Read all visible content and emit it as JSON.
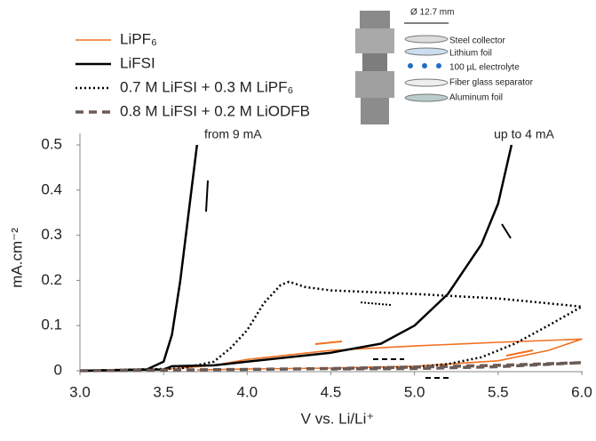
{
  "chart_data": {
    "type": "line",
    "xlabel": "V vs. Li/Li⁺",
    "ylabel": "mA.cm⁻²",
    "xlim": [
      3,
      6
    ],
    "ylim": [
      0,
      0.5
    ],
    "xticks": [
      {
        "value": 3,
        "label": "3.0"
      },
      {
        "value": 3.5,
        "label": "3.5"
      },
      {
        "value": 4,
        "label": "4.0"
      },
      {
        "value": 4.5,
        "label": "4.5"
      },
      {
        "value": 5,
        "label": "5.0"
      },
      {
        "value": 5.5,
        "label": "5.5"
      },
      {
        "value": 6,
        "label": "6.0"
      }
    ],
    "yticks": [
      0,
      0.1,
      0.2,
      0.3,
      0.4,
      0.5
    ],
    "grid": false,
    "series": [
      {
        "name": "LiPF₆",
        "color": "#f07020",
        "linestyle": "solid",
        "x": [
          3.0,
          3.5,
          3.8,
          4.0,
          4.5,
          5.0,
          5.5,
          6.0,
          5.8,
          5.5,
          5.0,
          4.5,
          4.0,
          3.7
        ],
        "values": [
          0,
          0.003,
          0.012,
          0.025,
          0.045,
          0.055,
          0.063,
          0.07,
          0.045,
          0.022,
          0.01,
          0.006,
          0.004,
          0.002
        ]
      },
      {
        "name": "LiFSI",
        "color": "#000000",
        "linestyle": "solid",
        "x": [
          3.0,
          3.5,
          3.55,
          3.8,
          4.0,
          4.5,
          4.8,
          5.0,
          5.2,
          5.4,
          5.5,
          5.58,
          null,
          3.7,
          3.65,
          3.6,
          3.55,
          3.5,
          3.4,
          3.0
        ],
        "values": [
          0,
          0.003,
          0.01,
          0.012,
          0.02,
          0.04,
          0.06,
          0.1,
          0.17,
          0.28,
          0.37,
          0.5,
          null,
          0.5,
          0.35,
          0.2,
          0.08,
          0.02,
          0.003,
          0
        ]
      },
      {
        "name": "0.7 M LiFSI + 0.3 M LiPF₆",
        "color": "#000000",
        "linestyle": "dotted",
        "x": [
          3.0,
          3.6,
          3.8,
          3.9,
          4.0,
          4.1,
          4.2,
          4.25,
          4.35,
          4.5,
          5.0,
          5.5,
          6.0,
          5.8,
          5.6,
          5.4,
          5.2,
          5.0,
          4.5
        ],
        "values": [
          0,
          0.005,
          0.02,
          0.05,
          0.09,
          0.15,
          0.19,
          0.197,
          0.185,
          0.178,
          0.17,
          0.16,
          0.142,
          0.1,
          0.06,
          0.03,
          0.015,
          0.008,
          0.004
        ]
      },
      {
        "name": "0.8 M LiFSI + 0.2 M LiODFB",
        "color": "#6b5a55",
        "linestyle": "dashed",
        "x": [
          3.0,
          4.0,
          4.5,
          5.0,
          5.5,
          6.0,
          5.5,
          5.0,
          4.5
        ],
        "values": [
          0,
          0.003,
          0.005,
          0.008,
          0.012,
          0.018,
          0.009,
          0.005,
          0.004
        ]
      }
    ],
    "annotations": [
      "from 9 mA",
      "up to 4 mA"
    ],
    "inset": {
      "diameter": "Ø 12.7 mm",
      "layers": [
        "Steel collector",
        "Lithium foil",
        "100 µL electrolyte",
        "Fiber glass  separator",
        "Aluminum foil"
      ]
    }
  }
}
